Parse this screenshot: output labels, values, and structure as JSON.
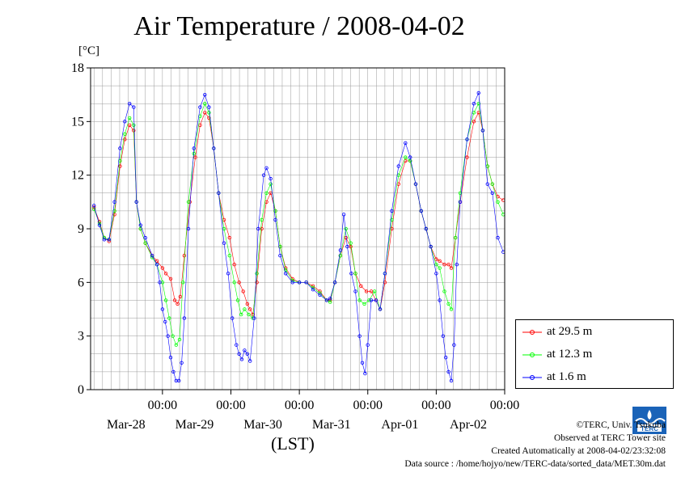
{
  "title": "Air Temperature / 2008-04-02",
  "unit_label": "[°C]",
  "x_axis_label": "(LST)",
  "colors": {
    "s1": "#ff0000",
    "s2": "#00ff00",
    "s3": "#0000ff",
    "grid": "#999999"
  },
  "credits": {
    "copyright": "©TERC, Univ. Tsukuba",
    "site": "Observed at TERC Tower site",
    "created": "Created Automatically at 2008-04-02/23:32:08",
    "source": "Data source : /home/hojyo/new/TERC-data/sorted_data/MET.30m.dat"
  },
  "logo_text": "TERC",
  "chart_data": {
    "type": "line",
    "title": "Air Temperature / 2008-04-02",
    "ylabel": "[°C]",
    "xlabel": "(LST)",
    "ylim": [
      0,
      18
    ],
    "yticks": [
      "0",
      "3",
      "6",
      "9",
      "12",
      "15",
      "18"
    ],
    "x_range_days": [
      -0.05,
      6.0
    ],
    "xticks": [
      {
        "time": "00:00",
        "date": "Mar-28",
        "day": 1.0
      },
      {
        "time": "00:00",
        "date": "Mar-29",
        "day": 2.0
      },
      {
        "time": "00:00",
        "date": "Mar-30",
        "day": 3.0
      },
      {
        "time": "00:00",
        "date": "Mar-31",
        "day": 4.0
      },
      {
        "time": "00:00",
        "date": "Apr-01",
        "day": 5.0
      },
      {
        "time": "00:00",
        "date": "Apr-02",
        "day": 6.0
      }
    ],
    "grid": true,
    "legend_position": "bottom-right, outside plot",
    "series": [
      {
        "name": "at 29.5 m",
        "color": "#ff0000",
        "marker": "open-circle",
        "points": [
          [
            0.0,
            10.2
          ],
          [
            0.08,
            9.4
          ],
          [
            0.15,
            8.5
          ],
          [
            0.22,
            8.3
          ],
          [
            0.3,
            9.8
          ],
          [
            0.38,
            12.5
          ],
          [
            0.45,
            14.0
          ],
          [
            0.52,
            14.8
          ],
          [
            0.58,
            14.5
          ],
          [
            0.62,
            10.5
          ],
          [
            0.68,
            9.0
          ],
          [
            0.75,
            8.2
          ],
          [
            0.85,
            7.5
          ],
          [
            0.92,
            7.2
          ],
          [
            1.0,
            6.8
          ],
          [
            1.05,
            6.5
          ],
          [
            1.12,
            6.2
          ],
          [
            1.18,
            5.0
          ],
          [
            1.22,
            4.8
          ],
          [
            1.26,
            5.2
          ],
          [
            1.32,
            7.5
          ],
          [
            1.4,
            10.5
          ],
          [
            1.48,
            13.0
          ],
          [
            1.55,
            14.8
          ],
          [
            1.62,
            15.5
          ],
          [
            1.68,
            15.2
          ],
          [
            1.75,
            13.5
          ],
          [
            1.82,
            11.0
          ],
          [
            1.9,
            9.5
          ],
          [
            1.98,
            8.5
          ],
          [
            2.05,
            7.0
          ],
          [
            2.12,
            6.0
          ],
          [
            2.18,
            5.5
          ],
          [
            2.24,
            4.8
          ],
          [
            2.28,
            4.5
          ],
          [
            2.32,
            4.2
          ],
          [
            2.38,
            6.0
          ],
          [
            2.45,
            9.0
          ],
          [
            2.52,
            10.5
          ],
          [
            2.58,
            11.0
          ],
          [
            2.65,
            10.0
          ],
          [
            2.72,
            8.0
          ],
          [
            2.8,
            6.8
          ],
          [
            2.9,
            6.2
          ],
          [
            3.0,
            6.0
          ],
          [
            3.1,
            6.0
          ],
          [
            3.2,
            5.8
          ],
          [
            3.3,
            5.5
          ],
          [
            3.4,
            5.0
          ],
          [
            3.45,
            5.0
          ],
          [
            3.52,
            6.0
          ],
          [
            3.6,
            7.5
          ],
          [
            3.68,
            8.5
          ],
          [
            3.75,
            8.0
          ],
          [
            3.82,
            6.5
          ],
          [
            3.9,
            5.8
          ],
          [
            3.98,
            5.5
          ],
          [
            4.05,
            5.5
          ],
          [
            4.12,
            5.0
          ],
          [
            4.18,
            4.5
          ],
          [
            4.25,
            6.0
          ],
          [
            4.35,
            9.0
          ],
          [
            4.45,
            11.5
          ],
          [
            4.55,
            12.8
          ],
          [
            4.62,
            12.8
          ],
          [
            4.7,
            11.5
          ],
          [
            4.78,
            10.0
          ],
          [
            4.85,
            9.0
          ],
          [
            4.92,
            8.0
          ],
          [
            5.0,
            7.3
          ],
          [
            5.05,
            7.2
          ],
          [
            5.12,
            7.0
          ],
          [
            5.18,
            7.0
          ],
          [
            5.22,
            6.8
          ],
          [
            5.28,
            8.5
          ],
          [
            5.35,
            10.5
          ],
          [
            5.45,
            13.0
          ],
          [
            5.55,
            15.0
          ],
          [
            5.62,
            15.5
          ],
          [
            5.68,
            14.5
          ],
          [
            5.75,
            12.5
          ],
          [
            5.82,
            11.5
          ],
          [
            5.9,
            10.8
          ],
          [
            5.98,
            10.6
          ]
        ]
      },
      {
        "name": "at 12.3 m",
        "color": "#00ff00",
        "marker": "open-circle",
        "points": [
          [
            0.0,
            10.1
          ],
          [
            0.08,
            9.3
          ],
          [
            0.15,
            8.5
          ],
          [
            0.22,
            8.4
          ],
          [
            0.3,
            10.0
          ],
          [
            0.38,
            12.8
          ],
          [
            0.45,
            14.3
          ],
          [
            0.52,
            15.2
          ],
          [
            0.58,
            14.8
          ],
          [
            0.62,
            10.5
          ],
          [
            0.68,
            9.0
          ],
          [
            0.75,
            8.2
          ],
          [
            0.85,
            7.4
          ],
          [
            0.92,
            7.0
          ],
          [
            1.0,
            6.0
          ],
          [
            1.05,
            5.0
          ],
          [
            1.1,
            4.0
          ],
          [
            1.15,
            3.0
          ],
          [
            1.2,
            2.5
          ],
          [
            1.25,
            2.8
          ],
          [
            1.3,
            6.0
          ],
          [
            1.38,
            10.5
          ],
          [
            1.46,
            13.2
          ],
          [
            1.55,
            15.3
          ],
          [
            1.62,
            16.0
          ],
          [
            1.68,
            15.5
          ],
          [
            1.75,
            13.5
          ],
          [
            1.82,
            11.0
          ],
          [
            1.9,
            9.0
          ],
          [
            1.98,
            7.5
          ],
          [
            2.05,
            6.0
          ],
          [
            2.1,
            5.0
          ],
          [
            2.15,
            4.2
          ],
          [
            2.2,
            4.5
          ],
          [
            2.26,
            4.2
          ],
          [
            2.32,
            4.0
          ],
          [
            2.38,
            6.5
          ],
          [
            2.45,
            9.5
          ],
          [
            2.52,
            11.0
          ],
          [
            2.58,
            11.5
          ],
          [
            2.65,
            10.0
          ],
          [
            2.72,
            8.0
          ],
          [
            2.8,
            6.7
          ],
          [
            2.9,
            6.1
          ],
          [
            3.0,
            6.0
          ],
          [
            3.1,
            6.0
          ],
          [
            3.2,
            5.7
          ],
          [
            3.3,
            5.4
          ],
          [
            3.4,
            5.0
          ],
          [
            3.45,
            4.9
          ],
          [
            3.52,
            6.0
          ],
          [
            3.6,
            7.5
          ],
          [
            3.68,
            9.0
          ],
          [
            3.75,
            8.2
          ],
          [
            3.82,
            6.5
          ],
          [
            3.88,
            5.0
          ],
          [
            3.95,
            4.8
          ],
          [
            4.02,
            5.0
          ],
          [
            4.1,
            5.5
          ],
          [
            4.18,
            4.5
          ],
          [
            4.25,
            6.5
          ],
          [
            4.35,
            9.5
          ],
          [
            4.45,
            12.0
          ],
          [
            4.55,
            13.0
          ],
          [
            4.62,
            12.8
          ],
          [
            4.7,
            11.5
          ],
          [
            4.78,
            10.0
          ],
          [
            4.85,
            9.0
          ],
          [
            4.92,
            8.0
          ],
          [
            5.0,
            7.0
          ],
          [
            5.05,
            6.8
          ],
          [
            5.12,
            5.5
          ],
          [
            5.18,
            4.8
          ],
          [
            5.22,
            4.5
          ],
          [
            5.28,
            8.5
          ],
          [
            5.35,
            11.0
          ],
          [
            5.45,
            14.0
          ],
          [
            5.55,
            15.5
          ],
          [
            5.62,
            16.0
          ],
          [
            5.68,
            14.5
          ],
          [
            5.75,
            12.5
          ],
          [
            5.82,
            11.5
          ],
          [
            5.9,
            10.5
          ],
          [
            5.98,
            9.8
          ]
        ]
      },
      {
        "name": "at 1.6 m",
        "color": "#0000ff",
        "marker": "open-circle",
        "points": [
          [
            0.0,
            10.3
          ],
          [
            0.08,
            9.2
          ],
          [
            0.15,
            8.4
          ],
          [
            0.22,
            8.4
          ],
          [
            0.3,
            10.5
          ],
          [
            0.38,
            13.5
          ],
          [
            0.45,
            15.0
          ],
          [
            0.52,
            16.0
          ],
          [
            0.58,
            15.8
          ],
          [
            0.62,
            10.5
          ],
          [
            0.68,
            9.2
          ],
          [
            0.75,
            8.5
          ],
          [
            0.85,
            7.5
          ],
          [
            0.92,
            7.0
          ],
          [
            0.96,
            6.0
          ],
          [
            1.0,
            4.5
          ],
          [
            1.04,
            3.8
          ],
          [
            1.08,
            3.0
          ],
          [
            1.12,
            1.8
          ],
          [
            1.16,
            1.0
          ],
          [
            1.2,
            0.5
          ],
          [
            1.24,
            0.5
          ],
          [
            1.28,
            1.5
          ],
          [
            1.32,
            4.0
          ],
          [
            1.38,
            9.0
          ],
          [
            1.46,
            13.5
          ],
          [
            1.55,
            15.8
          ],
          [
            1.62,
            16.5
          ],
          [
            1.68,
            15.8
          ],
          [
            1.75,
            13.5
          ],
          [
            1.82,
            11.0
          ],
          [
            1.9,
            8.2
          ],
          [
            1.96,
            6.5
          ],
          [
            2.02,
            4.0
          ],
          [
            2.08,
            2.5
          ],
          [
            2.12,
            2.0
          ],
          [
            2.16,
            1.7
          ],
          [
            2.2,
            2.2
          ],
          [
            2.24,
            2.0
          ],
          [
            2.28,
            1.6
          ],
          [
            2.34,
            4.0
          ],
          [
            2.4,
            9.0
          ],
          [
            2.48,
            12.0
          ],
          [
            2.52,
            12.4
          ],
          [
            2.58,
            11.8
          ],
          [
            2.65,
            9.5
          ],
          [
            2.72,
            7.5
          ],
          [
            2.8,
            6.5
          ],
          [
            2.9,
            6.0
          ],
          [
            3.0,
            6.0
          ],
          [
            3.1,
            6.0
          ],
          [
            3.2,
            5.6
          ],
          [
            3.3,
            5.3
          ],
          [
            3.4,
            5.0
          ],
          [
            3.45,
            5.1
          ],
          [
            3.52,
            6.0
          ],
          [
            3.6,
            7.8
          ],
          [
            3.65,
            9.8
          ],
          [
            3.7,
            8.0
          ],
          [
            3.76,
            6.5
          ],
          [
            3.82,
            5.5
          ],
          [
            3.88,
            3.0
          ],
          [
            3.92,
            1.5
          ],
          [
            3.96,
            0.9
          ],
          [
            4.0,
            2.5
          ],
          [
            4.05,
            5.0
          ],
          [
            4.12,
            5.0
          ],
          [
            4.18,
            4.5
          ],
          [
            4.25,
            6.5
          ],
          [
            4.35,
            10.0
          ],
          [
            4.45,
            12.5
          ],
          [
            4.55,
            13.8
          ],
          [
            4.62,
            13.0
          ],
          [
            4.7,
            11.5
          ],
          [
            4.78,
            10.0
          ],
          [
            4.85,
            9.0
          ],
          [
            4.92,
            8.0
          ],
          [
            5.0,
            6.5
          ],
          [
            5.05,
            5.0
          ],
          [
            5.1,
            3.0
          ],
          [
            5.14,
            1.8
          ],
          [
            5.18,
            1.0
          ],
          [
            5.22,
            0.5
          ],
          [
            5.26,
            2.5
          ],
          [
            5.3,
            7.0
          ],
          [
            5.35,
            10.5
          ],
          [
            5.45,
            14.0
          ],
          [
            5.55,
            16.0
          ],
          [
            5.62,
            16.6
          ],
          [
            5.68,
            14.5
          ],
          [
            5.75,
            11.5
          ],
          [
            5.82,
            11.0
          ],
          [
            5.9,
            8.5
          ],
          [
            5.98,
            7.7
          ]
        ]
      }
    ]
  }
}
